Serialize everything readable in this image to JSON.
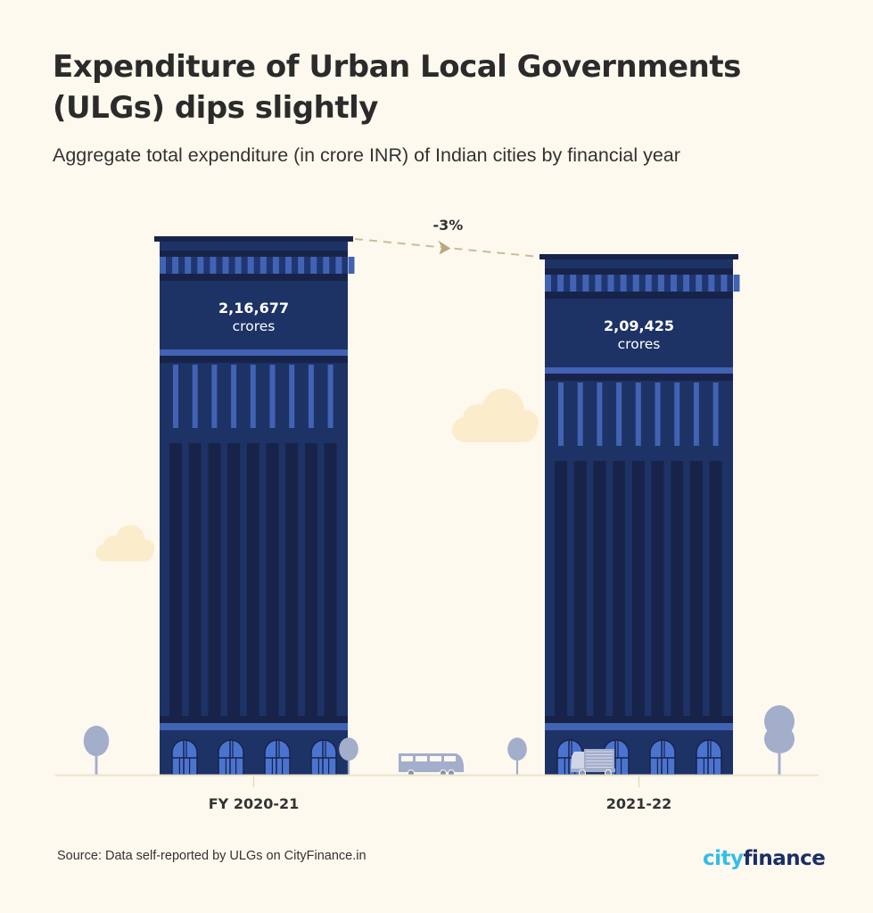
{
  "header": {
    "title": "Expenditure of Urban Local Governments (ULGs) dips slightly",
    "subtitle": "Aggregate total expenditure (in crore INR) of Indian cities by financial year"
  },
  "footer": {
    "source": "Source: Data self-reported by ULGs on CityFinance.in",
    "logo_part1": "city",
    "logo_part2": "finance"
  },
  "colors": {
    "background": "#fdf9ee",
    "building_body": "#1d3366",
    "building_dark": "#18234a",
    "building_accent": "#4263b4",
    "cloud": "#fbeccc",
    "tree": "#a3aecb",
    "arrow": "#c8bd9a",
    "logo_city": "#33bde8",
    "logo_finance": "#1c2e63"
  },
  "chart_data": {
    "type": "bar",
    "title": "Expenditure of Urban Local Governments (ULGs) dips slightly",
    "subtitle": "Aggregate total expenditure (in crore INR) of Indian cities by financial year",
    "categories": [
      "FY 2020-21",
      "2021-22"
    ],
    "values": [
      216677,
      209425
    ],
    "value_labels": [
      "2,16,677",
      "2,09,425"
    ],
    "unit_label": "crores",
    "change_label": "-3%",
    "xlabel": "",
    "ylabel": "",
    "ylim": [
      0,
      216677
    ],
    "grid": false,
    "legend": "none"
  }
}
